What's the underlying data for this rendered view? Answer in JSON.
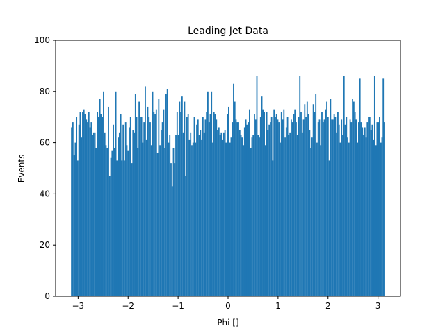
{
  "chart_data": {
    "type": "bar",
    "title": "Leading Jet Data",
    "xlabel": "Phi []",
    "ylabel": "Events",
    "xlim": [
      -3.45,
      3.45
    ],
    "ylim": [
      0,
      100
    ],
    "xticks": [
      -3,
      -2,
      -1,
      0,
      1,
      2,
      3
    ],
    "yticks": [
      0,
      20,
      40,
      60,
      80,
      100
    ],
    "xtick_labels": [
      "−3",
      "−2",
      "−1",
      "0",
      "1",
      "2",
      "3"
    ],
    "ytick_labels": [
      "0",
      "20",
      "40",
      "60",
      "80",
      "100"
    ],
    "bin_range": [
      -3.1416,
      3.1416
    ],
    "bar_color": "#1f77b4",
    "values": [
      66,
      68,
      55,
      60,
      70,
      53,
      67,
      72,
      62,
      72,
      73,
      71,
      69,
      68,
      72,
      66,
      68,
      63,
      64,
      64,
      58,
      72,
      70,
      77,
      71,
      70,
      80,
      64,
      59,
      58,
      74,
      47,
      54,
      57,
      67,
      58,
      80,
      53,
      62,
      64,
      71,
      53,
      67,
      53,
      68,
      59,
      57,
      66,
      70,
      52,
      65,
      64,
      79,
      70,
      58,
      76,
      70,
      70,
      60,
      68,
      82,
      61,
      74,
      70,
      68,
      59,
      80,
      72,
      71,
      73,
      56,
      77,
      59,
      65,
      68,
      73,
      58,
      79,
      81,
      60,
      63,
      52,
      43,
      58,
      52,
      63,
      72,
      63,
      76,
      72,
      78,
      64,
      76,
      47,
      70,
      71,
      61,
      64,
      59,
      60,
      70,
      60,
      67,
      69,
      63,
      65,
      61,
      70,
      64,
      69,
      72,
      80,
      68,
      71,
      80,
      60,
      72,
      71,
      69,
      65,
      66,
      63,
      64,
      61,
      64,
      65,
      60,
      71,
      74,
      60,
      62,
      68,
      83,
      76,
      69,
      68,
      68,
      65,
      63,
      62,
      59,
      66,
      69,
      67,
      68,
      73,
      58,
      62,
      63,
      71,
      69,
      86,
      63,
      62,
      70,
      78,
      73,
      72,
      59,
      72,
      65,
      67,
      68,
      70,
      53,
      73,
      70,
      71,
      69,
      68,
      60,
      72,
      69,
      73,
      62,
      66,
      70,
      63,
      64,
      69,
      68,
      71,
      73,
      68,
      63,
      70,
      86,
      72,
      64,
      69,
      75,
      70,
      76,
      71,
      65,
      58,
      62,
      75,
      72,
      79,
      60,
      68,
      69,
      59,
      72,
      68,
      69,
      73,
      76,
      70,
      53,
      77,
      69,
      69,
      71,
      70,
      64,
      72,
      67,
      60,
      69,
      63,
      86,
      67,
      70,
      62,
      60,
      69,
      68,
      77,
      76,
      72,
      69,
      60,
      68,
      85,
      68,
      66,
      63,
      66,
      62,
      68,
      70,
      70,
      65,
      67,
      61,
      86,
      59,
      68,
      68,
      70,
      60,
      62,
      85,
      68
    ]
  }
}
